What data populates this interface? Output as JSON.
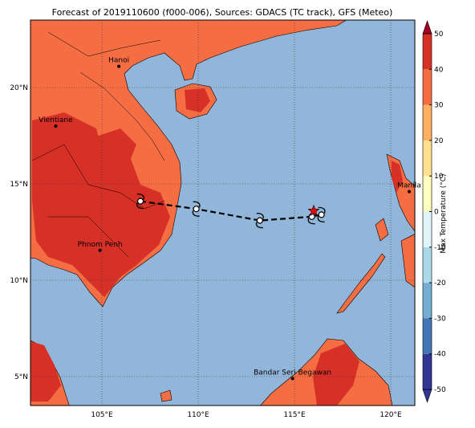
{
  "map": {
    "title": "Forecast of 2019110600 (f000-006), Sources: GDACS (TC track), GFS (Meteo)",
    "extent": {
      "lon": [
        101.29,
        121.25
      ],
      "lat": [
        3.5,
        23.5
      ]
    },
    "lon_ticks": [
      {
        "value": 105,
        "label": "105°E"
      },
      {
        "value": 110,
        "label": "110°E"
      },
      {
        "value": 115,
        "label": "115°E"
      },
      {
        "value": 120,
        "label": "120°E"
      }
    ],
    "lat_ticks": [
      {
        "value": 5,
        "label": "5°N"
      },
      {
        "value": 10,
        "label": "10°N"
      },
      {
        "value": 15,
        "label": "15°N"
      },
      {
        "value": 20,
        "label": "20°N"
      }
    ],
    "cities": [
      {
        "name": "Hanoi",
        "lon": 105.88,
        "lat": 21.1
      },
      {
        "name": "Vientiane",
        "lon": 102.6,
        "lat": 18.0
      },
      {
        "name": "Phnom Penh",
        "lon": 104.9,
        "lat": 11.55
      },
      {
        "name": "Manila",
        "lon": 120.96,
        "lat": 14.6
      },
      {
        "name": "Bandar Seri Begawan",
        "lon": 114.9,
        "lat": 4.9
      }
    ],
    "track": {
      "lon": [
        107.0,
        109.9,
        113.2,
        115.9,
        116.4
      ],
      "lat": [
        14.1,
        13.7,
        13.1,
        13.3,
        13.4
      ]
    },
    "storm_position": {
      "lon": 116.0,
      "lat": 13.6
    },
    "colorbar": {
      "label": "Max Temperature (°C)",
      "ticks": [
        -50,
        -40,
        -30,
        -20,
        -10,
        0,
        10,
        20,
        30,
        40,
        50
      ],
      "colors": [
        "#313695",
        "#4575b4",
        "#74add1",
        "#abd9e9",
        "#e0f3f8",
        "#ffffbf",
        "#fee090",
        "#fdae61",
        "#f46d43",
        "#d73027",
        "#a50026"
      ]
    }
  }
}
